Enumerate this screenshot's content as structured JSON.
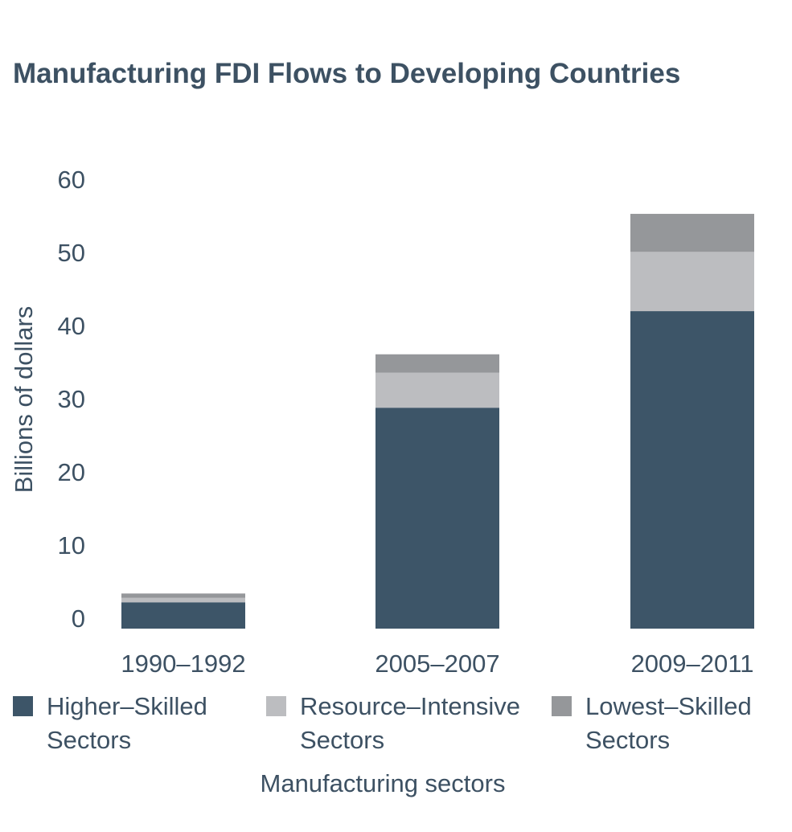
{
  "chart_data": {
    "type": "bar",
    "stacked": true,
    "title": "Manufacturing FDI Flows to Developing Countries",
    "xlabel": "Manufacturing sectors",
    "ylabel": "Billions of dollars",
    "ylim": [
      0,
      60
    ],
    "yticks": [
      "0",
      "10",
      "20",
      "30",
      "40",
      "50",
      "60"
    ],
    "categories": [
      "1990–1992",
      "2005–2007",
      "2009–2011"
    ],
    "series": [
      {
        "name": "Higher–Skilled Sectors",
        "name_lines": [
          "Higher–Skilled",
          "Sectors"
        ],
        "color": "#3d5568",
        "values": [
          3.6,
          30.2,
          43.4
        ]
      },
      {
        "name": "Resource–Intensive Sectors",
        "name_lines": [
          "Resource–Intensive",
          "Sectors"
        ],
        "color": "#bcbdc0",
        "values": [
          0.6,
          4.8,
          8.1
        ]
      },
      {
        "name": "Lowest–Skilled Sectors",
        "name_lines": [
          "Lowest–Skilled",
          "Sectors"
        ],
        "color": "#95979a",
        "values": [
          0.6,
          2.5,
          5.2
        ]
      }
    ],
    "grid": false,
    "legend": "bottom"
  }
}
